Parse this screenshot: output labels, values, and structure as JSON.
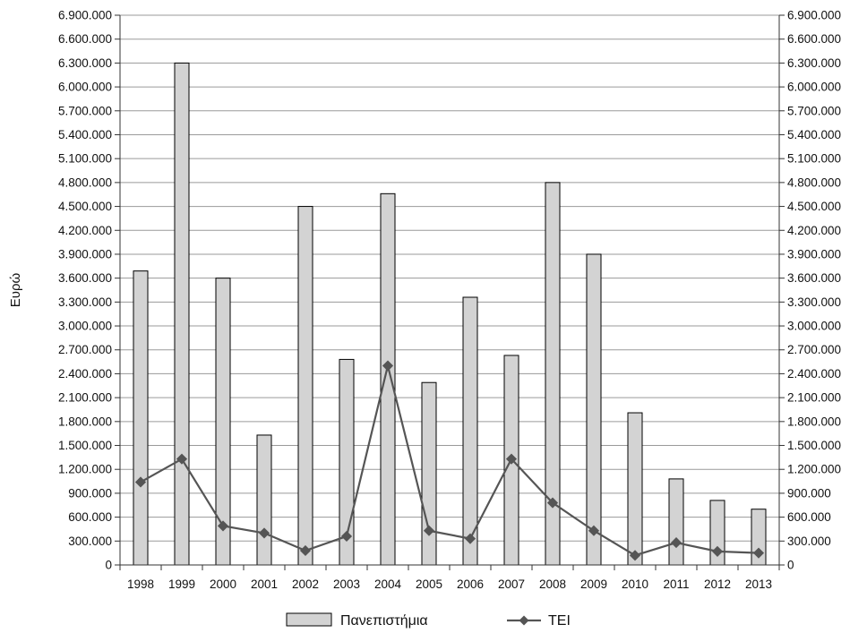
{
  "chart_data": {
    "type": "bar",
    "categories": [
      "1998",
      "1999",
      "2000",
      "2001",
      "2002",
      "2003",
      "2004",
      "2005",
      "2006",
      "2007",
      "2008",
      "2009",
      "2010",
      "2011",
      "2012",
      "2013"
    ],
    "series": [
      {
        "name": "Πανεπιστήμια",
        "type": "bar",
        "color": "#d3d3d3",
        "values": [
          3690000,
          6300000,
          3600000,
          1630000,
          4500000,
          2580000,
          4660000,
          2290000,
          3360000,
          2630000,
          4800000,
          3900000,
          1910000,
          1080000,
          810000,
          700000
        ]
      },
      {
        "name": "ΤΕΙ",
        "type": "line",
        "color": "#555555",
        "marker": "diamond",
        "values": [
          1040000,
          1330000,
          490000,
          400000,
          180000,
          360000,
          2500000,
          430000,
          330000,
          1330000,
          780000,
          430000,
          120000,
          280000,
          170000,
          150000
        ]
      }
    ],
    "ylabel": "Ευρώ",
    "ylim": [
      0,
      6900000
    ],
    "ytick_step": 300000,
    "ytick_labels": [
      "0",
      "300.000",
      "600.000",
      "900.000",
      "1.200.000",
      "1.500.000",
      "1.800.000",
      "2.100.000",
      "2.400.000",
      "2.700.000",
      "3.000.000",
      "3.300.000",
      "3.600.000",
      "3.900.000",
      "4.200.000",
      "4.500.000",
      "4.800.000",
      "5.100.000",
      "5.400.000",
      "5.700.000",
      "6.000.000",
      "6.300.000",
      "6.600.000",
      "6.900.000"
    ],
    "secondary_y_axis": true,
    "grid": "horizontal",
    "legend_position": "bottom-center"
  }
}
